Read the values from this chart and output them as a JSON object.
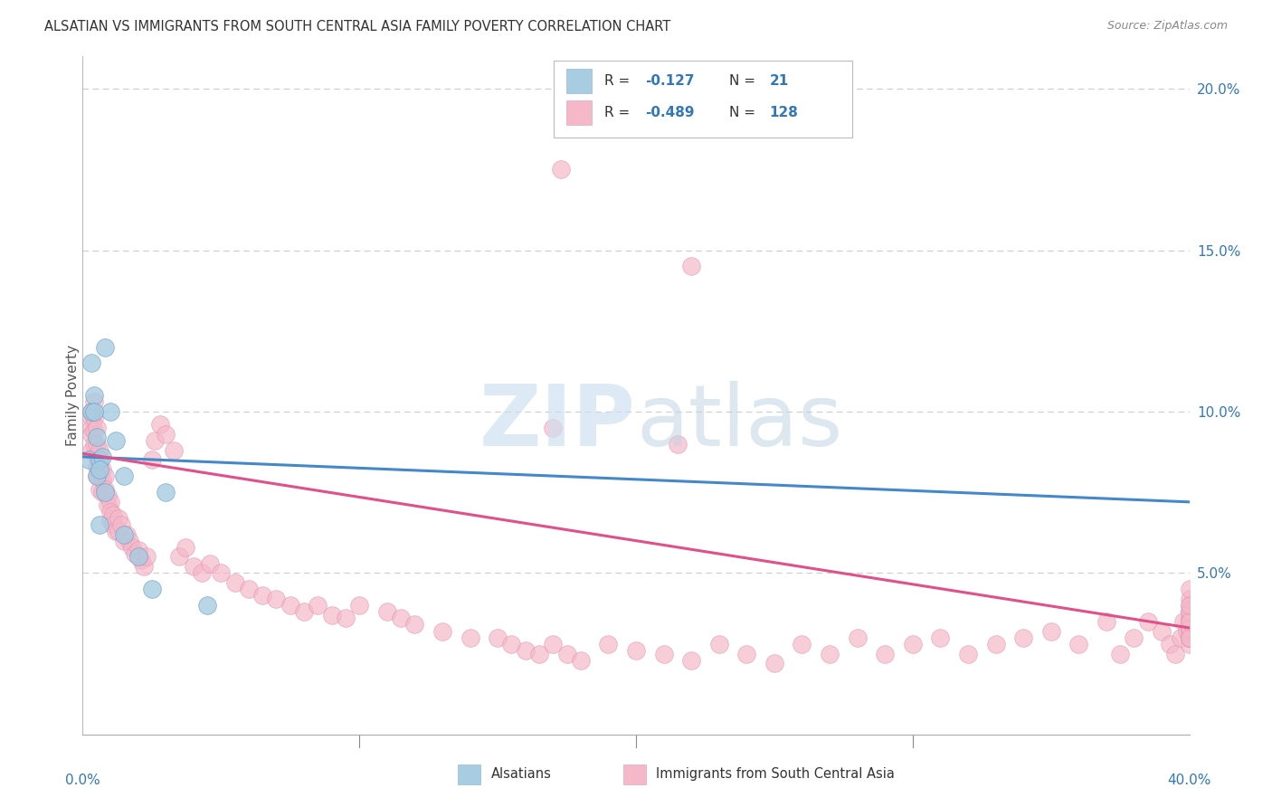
{
  "title": "ALSATIAN VS IMMIGRANTS FROM SOUTH CENTRAL ASIA FAMILY POVERTY CORRELATION CHART",
  "source": "Source: ZipAtlas.com",
  "ylabel": "Family Poverty",
  "legend_label1": "Alsatians",
  "legend_label2": "Immigrants from South Central Asia",
  "legend_r1_val": "-0.127",
  "legend_n1_val": "21",
  "legend_r2_val": "-0.489",
  "legend_n2_val": "128",
  "color_blue": "#a8cce0",
  "color_pink": "#f4b8c8",
  "line_blue": "#4488cc",
  "line_pink": "#e0508a",
  "xlim": [
    0.0,
    0.4
  ],
  "ylim": [
    0.0,
    0.21
  ],
  "blue_trendline_x": [
    0.0,
    0.4
  ],
  "blue_trendline_y": [
    0.086,
    0.072
  ],
  "pink_trendline_x": [
    0.0,
    0.4
  ],
  "pink_trendline_y": [
    0.087,
    0.033
  ],
  "als_x": [
    0.002,
    0.003,
    0.004,
    0.005,
    0.005,
    0.006,
    0.006,
    0.007,
    0.008,
    0.01,
    0.012,
    0.015,
    0.015,
    0.02,
    0.025,
    0.003,
    0.004,
    0.006,
    0.008,
    0.03,
    0.045
  ],
  "als_y": [
    0.085,
    0.1,
    0.105,
    0.08,
    0.092,
    0.065,
    0.085,
    0.086,
    0.12,
    0.1,
    0.091,
    0.08,
    0.062,
    0.055,
    0.045,
    0.115,
    0.1,
    0.082,
    0.075,
    0.075,
    0.04
  ],
  "imm_x": [
    0.003,
    0.003,
    0.003,
    0.003,
    0.003,
    0.004,
    0.004,
    0.004,
    0.004,
    0.005,
    0.005,
    0.005,
    0.005,
    0.005,
    0.006,
    0.006,
    0.006,
    0.006,
    0.007,
    0.007,
    0.007,
    0.008,
    0.008,
    0.009,
    0.009,
    0.01,
    0.01,
    0.01,
    0.011,
    0.011,
    0.012,
    0.013,
    0.013,
    0.014,
    0.015,
    0.016,
    0.017,
    0.018,
    0.019,
    0.02,
    0.021,
    0.022,
    0.023,
    0.025,
    0.026,
    0.028,
    0.03,
    0.033,
    0.035,
    0.037,
    0.04,
    0.043,
    0.046,
    0.05,
    0.055,
    0.06,
    0.065,
    0.07,
    0.075,
    0.08,
    0.085,
    0.09,
    0.095,
    0.1,
    0.11,
    0.115,
    0.12,
    0.13,
    0.14,
    0.15,
    0.155,
    0.16,
    0.165,
    0.17,
    0.175,
    0.18,
    0.19,
    0.2,
    0.21,
    0.22,
    0.23,
    0.24,
    0.25,
    0.26,
    0.27,
    0.28,
    0.29,
    0.3,
    0.31,
    0.32,
    0.33,
    0.34,
    0.35,
    0.36,
    0.37,
    0.375,
    0.38,
    0.385,
    0.39,
    0.393,
    0.395,
    0.397,
    0.398,
    0.399,
    0.4,
    0.4,
    0.4,
    0.4,
    0.4,
    0.4,
    0.4,
    0.4,
    0.4,
    0.4,
    0.4,
    0.4,
    0.4,
    0.4,
    0.4,
    0.4,
    0.4,
    0.4,
    0.4,
    0.4,
    0.173,
    0.22,
    0.17,
    0.215
  ],
  "imm_y": [
    0.1,
    0.098,
    0.095,
    0.093,
    0.088,
    0.103,
    0.098,
    0.094,
    0.09,
    0.095,
    0.09,
    0.086,
    0.083,
    0.08,
    0.088,
    0.084,
    0.08,
    0.076,
    0.082,
    0.079,
    0.075,
    0.08,
    0.076,
    0.074,
    0.071,
    0.072,
    0.069,
    0.066,
    0.068,
    0.065,
    0.063,
    0.067,
    0.063,
    0.065,
    0.06,
    0.062,
    0.06,
    0.058,
    0.056,
    0.057,
    0.054,
    0.052,
    0.055,
    0.085,
    0.091,
    0.096,
    0.093,
    0.088,
    0.055,
    0.058,
    0.052,
    0.05,
    0.053,
    0.05,
    0.047,
    0.045,
    0.043,
    0.042,
    0.04,
    0.038,
    0.04,
    0.037,
    0.036,
    0.04,
    0.038,
    0.036,
    0.034,
    0.032,
    0.03,
    0.03,
    0.028,
    0.026,
    0.025,
    0.028,
    0.025,
    0.023,
    0.028,
    0.026,
    0.025,
    0.023,
    0.028,
    0.025,
    0.022,
    0.028,
    0.025,
    0.03,
    0.025,
    0.028,
    0.03,
    0.025,
    0.028,
    0.03,
    0.032,
    0.028,
    0.035,
    0.025,
    0.03,
    0.035,
    0.032,
    0.028,
    0.025,
    0.03,
    0.035,
    0.032,
    0.03,
    0.028,
    0.033,
    0.036,
    0.04,
    0.03,
    0.033,
    0.038,
    0.035,
    0.032,
    0.038,
    0.035,
    0.03,
    0.033,
    0.038,
    0.042,
    0.045,
    0.03,
    0.035,
    0.04,
    0.175,
    0.145,
    0.095,
    0.09
  ]
}
